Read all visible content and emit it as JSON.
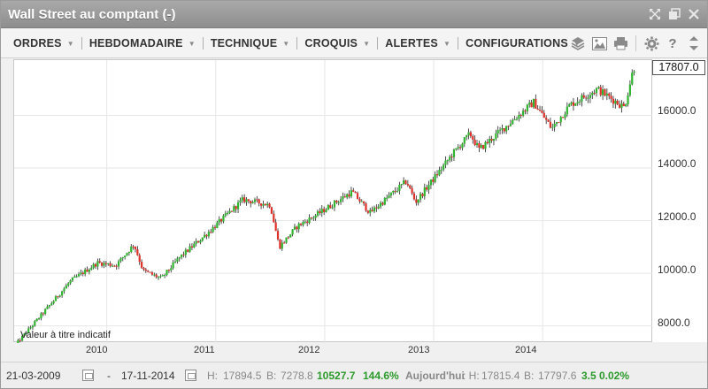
{
  "window": {
    "title": "Wall Street au comptant (-)"
  },
  "menu": {
    "items": [
      {
        "label": "ORDRES"
      },
      {
        "label": "HEBDOMADAIRE"
      },
      {
        "label": "TECHNIQUE"
      },
      {
        "label": "CROQUIS"
      },
      {
        "label": "ALERTES"
      },
      {
        "label": "CONFIGURATIONS"
      }
    ]
  },
  "toolbar": {
    "icons": [
      "layers-icon",
      "image-icon",
      "print-icon",
      "gear-icon",
      "help-icon",
      "expand-icon"
    ]
  },
  "chart_data": {
    "type": "candlestick",
    "title": "",
    "x_labels": [
      "2010",
      "2011",
      "2012",
      "2013",
      "2014"
    ],
    "y_ticks": [
      "8000.0",
      "10000.0",
      "12000.0",
      "14000.0",
      "16000.0"
    ],
    "ylim": [
      7350,
      18100
    ],
    "last_price": "17807.0",
    "note": "Valeur à titre indicatif",
    "colors": {
      "up": "#2fb52f",
      "down": "#e0302a",
      "wick": "#222222",
      "grid": "#e6e6e6"
    },
    "weekly_close_path": [
      [
        "2009-03",
        7300
      ],
      [
        "2009-06",
        8500
      ],
      [
        "2009-09",
        9700
      ],
      [
        "2009-12",
        10400
      ],
      [
        "2010-02",
        10300
      ],
      [
        "2010-04",
        11100
      ],
      [
        "2010-05",
        10100
      ],
      [
        "2010-07",
        9800
      ],
      [
        "2010-09",
        10600
      ],
      [
        "2010-12",
        11500
      ],
      [
        "2011-04",
        12800
      ],
      [
        "2011-07",
        12600
      ],
      [
        "2011-08",
        11000
      ],
      [
        "2011-10",
        11800
      ],
      [
        "2011-12",
        12200
      ],
      [
        "2012-04",
        13100
      ],
      [
        "2012-06",
        12300
      ],
      [
        "2012-10",
        13500
      ],
      [
        "2012-11",
        12700
      ],
      [
        "2013-03",
        14500
      ],
      [
        "2013-05",
        15300
      ],
      [
        "2013-06",
        14700
      ],
      [
        "2013-09",
        15600
      ],
      [
        "2013-12",
        16500
      ],
      [
        "2014-02",
        15500
      ],
      [
        "2014-04",
        16400
      ],
      [
        "2014-07",
        17000
      ],
      [
        "2014-10",
        16300
      ],
      [
        "2014-11",
        17807
      ]
    ]
  },
  "status": {
    "date_from": "21-03-2009",
    "dash": "-",
    "date_to": "17-11-2014",
    "high_label": "H:",
    "high": "17894.5",
    "low_label": "B:",
    "low": "7278.8",
    "change": "10527.7",
    "change_pct": "144.6%",
    "today_label": "Aujourd'hui",
    "today_high_label": ": H:",
    "today_high": "17815.4",
    "today_low_label": "B:",
    "today_low": "17797.6",
    "today_change": "3.5",
    "today_change_pct": "0.02%"
  }
}
